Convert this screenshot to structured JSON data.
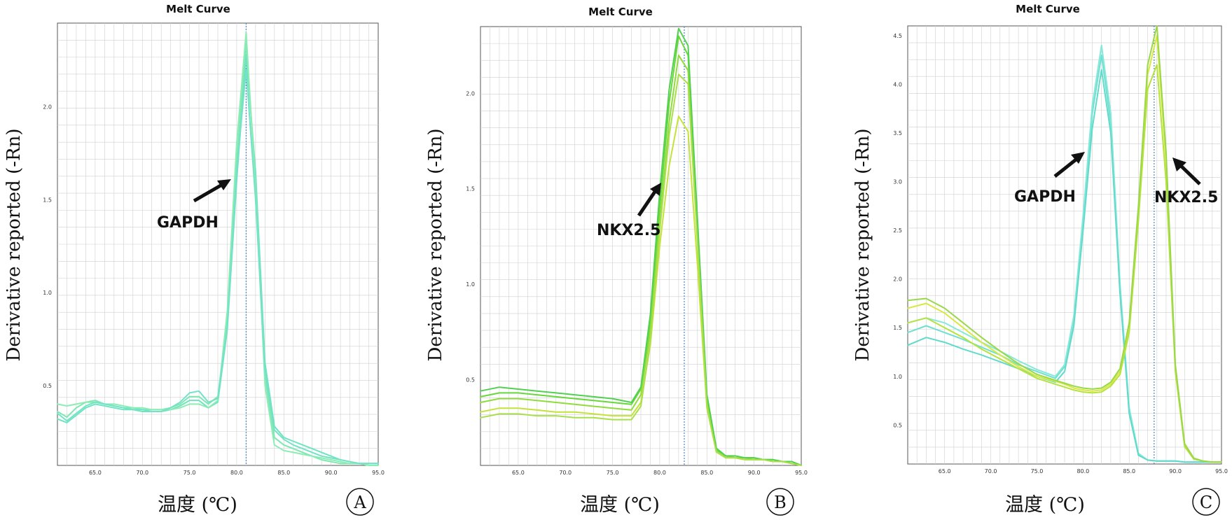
{
  "chart_data": [
    {
      "type": "line",
      "panel_label": "A",
      "title": "Melt Curve",
      "xlabel": "温度 (℃)",
      "ylabel": "Derivative reported (-Rn)",
      "xlim": [
        61.0,
        95.0
      ],
      "ylim": [
        0.07,
        2.45
      ],
      "grid": true,
      "x_ticks": [
        "65.0",
        "70.0",
        "75.0",
        "80.0",
        "85.0",
        "90.0",
        "95.0"
      ],
      "y_ticks": [
        "0.5",
        "1.0",
        "1.5",
        "2.0"
      ],
      "marker_line_x": 81.0,
      "annotations": [
        {
          "text": "GAPDH",
          "target_x": 80.3,
          "target_y": 1.57
        }
      ],
      "series": [
        {
          "color": "#7ee8b0",
          "x": [
            61,
            62,
            63,
            64,
            65,
            66,
            67,
            68,
            69,
            70,
            71,
            72,
            73,
            74,
            75,
            76,
            77,
            78,
            79,
            80,
            81,
            82,
            83,
            84,
            85,
            86,
            87,
            88,
            89,
            90,
            91,
            92,
            93,
            94,
            95
          ],
          "values": [
            0.36,
            0.33,
            0.38,
            0.41,
            0.42,
            0.4,
            0.39,
            0.38,
            0.38,
            0.37,
            0.37,
            0.37,
            0.38,
            0.4,
            0.44,
            0.44,
            0.4,
            0.44,
            0.85,
            1.7,
            2.35,
            1.6,
            0.55,
            0.22,
            0.18,
            0.16,
            0.14,
            0.12,
            0.1,
            0.09,
            0.08,
            0.08,
            0.08,
            0.08,
            0.08
          ]
        },
        {
          "color": "#6fe4c0",
          "x": [
            61,
            62,
            63,
            64,
            65,
            66,
            67,
            68,
            69,
            70,
            71,
            72,
            73,
            74,
            75,
            76,
            77,
            78,
            79,
            80,
            81,
            82,
            83,
            84,
            85,
            86,
            87,
            88,
            89,
            90,
            91,
            92,
            93,
            94,
            95
          ],
          "values": [
            0.32,
            0.3,
            0.34,
            0.38,
            0.4,
            0.39,
            0.38,
            0.37,
            0.37,
            0.36,
            0.36,
            0.36,
            0.37,
            0.39,
            0.42,
            0.42,
            0.38,
            0.41,
            0.8,
            1.6,
            2.28,
            1.65,
            0.62,
            0.28,
            0.22,
            0.2,
            0.18,
            0.16,
            0.14,
            0.12,
            0.1,
            0.09,
            0.08,
            0.08,
            0.08
          ]
        },
        {
          "color": "#8cedb4",
          "x": [
            61,
            62,
            63,
            64,
            65,
            66,
            67,
            68,
            69,
            70,
            71,
            72,
            73,
            74,
            75,
            76,
            77,
            78,
            79,
            80,
            81,
            82,
            83,
            84,
            85,
            86,
            87,
            88,
            89,
            90,
            91,
            92,
            93,
            94,
            95
          ],
          "values": [
            0.4,
            0.39,
            0.4,
            0.41,
            0.41,
            0.4,
            0.4,
            0.39,
            0.38,
            0.38,
            0.37,
            0.37,
            0.37,
            0.38,
            0.4,
            0.4,
            0.38,
            0.42,
            0.9,
            1.8,
            2.4,
            1.55,
            0.5,
            0.18,
            0.15,
            0.14,
            0.13,
            0.12,
            0.11,
            0.1,
            0.09,
            0.08,
            0.08,
            0.07,
            0.07
          ]
        },
        {
          "color": "#74e2c8",
          "x": [
            61,
            62,
            63,
            64,
            65,
            66,
            67,
            68,
            69,
            70,
            71,
            72,
            73,
            74,
            75,
            76,
            77,
            78,
            79,
            80,
            81,
            82,
            83,
            84,
            85,
            86,
            87,
            88,
            89,
            90,
            91,
            92,
            93,
            94,
            95
          ],
          "values": [
            0.35,
            0.31,
            0.35,
            0.39,
            0.41,
            0.4,
            0.39,
            0.38,
            0.37,
            0.37,
            0.36,
            0.36,
            0.38,
            0.41,
            0.46,
            0.47,
            0.41,
            0.43,
            0.82,
            1.65,
            2.2,
            1.5,
            0.58,
            0.26,
            0.21,
            0.18,
            0.16,
            0.14,
            0.12,
            0.11,
            0.1,
            0.09,
            0.08,
            0.08,
            0.08
          ]
        }
      ]
    },
    {
      "type": "line",
      "panel_label": "B",
      "title": "Melt Curve",
      "xlabel": "温度 (℃)",
      "ylabel": "Derivative reported (-Rn)",
      "xlim": [
        61.0,
        95.0
      ],
      "ylim": [
        0.05,
        2.35
      ],
      "grid": true,
      "x_ticks": [
        "65.0",
        "70.0",
        "75.0",
        "80.0",
        "85.0",
        "90.0",
        "95.0"
      ],
      "y_ticks": [
        "0.5",
        "1.0",
        "1.5",
        "2.0"
      ],
      "marker_line_x": 82.6,
      "annotations": [
        {
          "text": "NKX2.5",
          "target_x": 81.8,
          "target_y": 1.5
        }
      ],
      "series": [
        {
          "color": "#66d83a",
          "x": [
            61,
            63,
            65,
            67,
            69,
            71,
            73,
            75,
            77,
            78,
            79,
            80,
            81,
            82,
            83,
            84,
            85,
            86,
            87,
            88,
            89,
            90,
            91,
            92,
            93,
            94,
            95
          ],
          "values": [
            0.41,
            0.43,
            0.43,
            0.42,
            0.41,
            0.4,
            0.39,
            0.38,
            0.37,
            0.45,
            0.8,
            1.4,
            1.95,
            2.3,
            2.2,
            1.3,
            0.4,
            0.13,
            0.1,
            0.09,
            0.09,
            0.09,
            0.08,
            0.08,
            0.07,
            0.07,
            0.05
          ]
        },
        {
          "color": "#8fdc3c",
          "x": [
            61,
            63,
            65,
            67,
            69,
            71,
            73,
            75,
            77,
            78,
            79,
            80,
            81,
            82,
            83,
            84,
            85,
            86,
            87,
            88,
            89,
            90,
            91,
            92,
            93,
            94,
            95
          ],
          "values": [
            0.38,
            0.4,
            0.4,
            0.39,
            0.38,
            0.37,
            0.36,
            0.35,
            0.34,
            0.42,
            0.75,
            1.32,
            1.85,
            2.2,
            2.12,
            1.25,
            0.38,
            0.12,
            0.1,
            0.09,
            0.09,
            0.08,
            0.08,
            0.08,
            0.07,
            0.06,
            0.05
          ]
        },
        {
          "color": "#c4e33a",
          "x": [
            61,
            63,
            65,
            67,
            69,
            71,
            73,
            75,
            77,
            78,
            79,
            80,
            81,
            82,
            83,
            84,
            85,
            86,
            87,
            88,
            89,
            90,
            91,
            92,
            93,
            94,
            95
          ],
          "values": [
            0.33,
            0.35,
            0.35,
            0.34,
            0.33,
            0.33,
            0.32,
            0.31,
            0.31,
            0.38,
            0.68,
            1.2,
            1.62,
            1.88,
            1.8,
            1.1,
            0.35,
            0.12,
            0.09,
            0.09,
            0.08,
            0.08,
            0.08,
            0.07,
            0.07,
            0.06,
            0.05
          ]
        },
        {
          "color": "#52d050",
          "x": [
            61,
            63,
            65,
            67,
            69,
            71,
            73,
            75,
            77,
            78,
            79,
            80,
            81,
            82,
            83,
            84,
            85,
            86,
            87,
            88,
            89,
            90,
            91,
            92,
            93,
            94,
            95
          ],
          "values": [
            0.44,
            0.46,
            0.45,
            0.44,
            0.43,
            0.42,
            0.41,
            0.4,
            0.38,
            0.46,
            0.84,
            1.48,
            2.02,
            2.34,
            2.25,
            1.34,
            0.42,
            0.14,
            0.1,
            0.1,
            0.09,
            0.09,
            0.08,
            0.08,
            0.07,
            0.07,
            0.05
          ]
        },
        {
          "color": "#a9e04a",
          "x": [
            61,
            63,
            65,
            67,
            69,
            71,
            73,
            75,
            77,
            78,
            79,
            80,
            81,
            82,
            83,
            84,
            85,
            86,
            87,
            88,
            89,
            90,
            91,
            92,
            93,
            94,
            95
          ],
          "values": [
            0.3,
            0.32,
            0.32,
            0.31,
            0.31,
            0.3,
            0.3,
            0.29,
            0.29,
            0.36,
            0.7,
            1.28,
            1.78,
            2.1,
            2.05,
            1.22,
            0.36,
            0.12,
            0.09,
            0.09,
            0.08,
            0.08,
            0.08,
            0.07,
            0.07,
            0.06,
            0.05
          ]
        }
      ]
    },
    {
      "type": "line",
      "panel_label": "C",
      "title": "Melt Curve",
      "xlabel": "温度 (℃)",
      "ylabel": "Derivative reported (-Rn)",
      "xlim": [
        61.0,
        95.0
      ],
      "ylim": [
        0.1,
        4.6
      ],
      "grid": true,
      "x_ticks": [
        "65.0",
        "70.0",
        "75.0",
        "80.0",
        "85.0",
        "90.0",
        "95.0"
      ],
      "y_ticks": [
        "0.5",
        "1.0",
        "1.5",
        "2.0",
        "2.5",
        "3.0",
        "3.5",
        "4.0",
        "4.5"
      ],
      "marker_line_x": 87.7,
      "annotations": [
        {
          "text": "GAPDH",
          "target_x": 80.0,
          "target_y": 3.3
        },
        {
          "text": "NKX2.5",
          "target_x": 87.3,
          "target_y": 3.2
        }
      ],
      "series": [
        {
          "color": "#6fe0d0",
          "x": [
            61,
            63,
            65,
            67,
            69,
            71,
            73,
            75,
            77,
            78,
            79,
            80,
            81,
            82,
            83,
            84,
            85,
            86,
            87,
            88,
            89,
            90,
            91,
            92,
            93,
            94,
            95
          ],
          "values": [
            1.45,
            1.52,
            1.45,
            1.38,
            1.3,
            1.22,
            1.12,
            1.05,
            0.98,
            1.1,
            1.6,
            2.6,
            3.7,
            4.3,
            3.6,
            1.9,
            0.65,
            0.2,
            0.14,
            0.13,
            0.13,
            0.13,
            0.12,
            0.12,
            0.12,
            0.12,
            0.12
          ]
        },
        {
          "color": "#84e8da",
          "x": [
            61,
            63,
            65,
            67,
            69,
            71,
            73,
            75,
            77,
            78,
            79,
            80,
            81,
            82,
            83,
            84,
            85,
            86,
            87,
            88,
            89,
            90,
            91,
            92,
            93,
            94,
            95
          ],
          "values": [
            1.55,
            1.6,
            1.55,
            1.45,
            1.35,
            1.26,
            1.16,
            1.07,
            1.0,
            1.12,
            1.62,
            2.65,
            3.78,
            4.4,
            3.7,
            1.95,
            0.68,
            0.21,
            0.14,
            0.13,
            0.13,
            0.13,
            0.12,
            0.12,
            0.12,
            0.12,
            0.12
          ]
        },
        {
          "color": "#62dacb",
          "x": [
            61,
            63,
            65,
            67,
            69,
            71,
            73,
            75,
            77,
            78,
            79,
            80,
            81,
            82,
            83,
            84,
            85,
            86,
            87,
            88,
            89,
            90,
            91,
            92,
            93,
            94,
            95
          ],
          "values": [
            1.32,
            1.4,
            1.35,
            1.28,
            1.22,
            1.15,
            1.08,
            1.0,
            0.94,
            1.05,
            1.52,
            2.5,
            3.55,
            4.15,
            3.5,
            1.85,
            0.62,
            0.19,
            0.14,
            0.13,
            0.13,
            0.13,
            0.12,
            0.12,
            0.12,
            0.12,
            0.12
          ]
        },
        {
          "color": "#d8e840",
          "x": [
            61,
            63,
            65,
            67,
            69,
            71,
            73,
            75,
            77,
            78,
            79,
            80,
            81,
            82,
            83,
            84,
            85,
            86,
            87,
            88,
            89,
            90,
            91,
            92,
            93,
            94,
            95
          ],
          "values": [
            1.7,
            1.75,
            1.65,
            1.5,
            1.35,
            1.22,
            1.1,
            1.0,
            0.95,
            0.92,
            0.88,
            0.86,
            0.85,
            0.86,
            0.92,
            1.05,
            1.5,
            2.7,
            4.1,
            4.5,
            3.2,
            1.1,
            0.3,
            0.16,
            0.13,
            0.12,
            0.12
          ]
        },
        {
          "color": "#b6e23c",
          "x": [
            61,
            63,
            65,
            67,
            69,
            71,
            73,
            75,
            77,
            78,
            79,
            80,
            81,
            82,
            83,
            84,
            85,
            86,
            87,
            88,
            89,
            90,
            91,
            92,
            93,
            94,
            95
          ],
          "values": [
            1.55,
            1.6,
            1.5,
            1.4,
            1.28,
            1.18,
            1.08,
            0.98,
            0.92,
            0.89,
            0.86,
            0.84,
            0.83,
            0.84,
            0.9,
            1.02,
            1.45,
            2.6,
            3.95,
            4.2,
            3.0,
            1.05,
            0.28,
            0.15,
            0.13,
            0.12,
            0.12
          ]
        },
        {
          "color": "#9ad84a",
          "x": [
            61,
            63,
            65,
            67,
            69,
            71,
            73,
            75,
            77,
            78,
            79,
            80,
            81,
            82,
            83,
            84,
            85,
            86,
            87,
            88,
            89,
            90,
            91,
            92,
            93,
            94,
            95
          ],
          "values": [
            1.78,
            1.8,
            1.7,
            1.55,
            1.4,
            1.26,
            1.13,
            1.02,
            0.96,
            0.93,
            0.9,
            0.88,
            0.87,
            0.88,
            0.94,
            1.08,
            1.55,
            2.75,
            4.2,
            4.6,
            3.3,
            1.12,
            0.31,
            0.16,
            0.13,
            0.12,
            0.12
          ]
        }
      ]
    }
  ]
}
